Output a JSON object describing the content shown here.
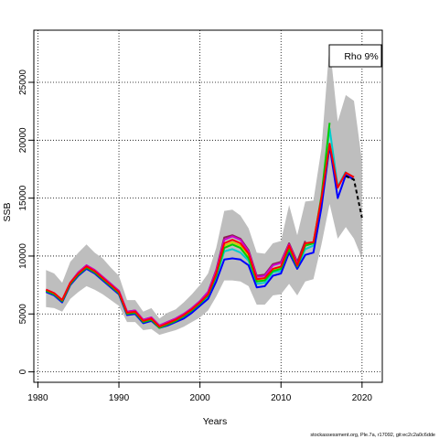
{
  "chart_data": {
    "type": "line",
    "xlabel": "Years",
    "ylabel": "SSB",
    "xlim": [
      1979.5,
      2022.5
    ],
    "ylim": [
      -900,
      29500
    ],
    "xticks": [
      1980,
      1990,
      2000,
      2010,
      2020
    ],
    "yticks": [
      0,
      5000,
      10000,
      15000,
      20000,
      25000
    ],
    "xtick_labels": [
      "1980",
      "1990",
      "2000",
      "2010",
      "2020"
    ],
    "ytick_labels": [
      "0",
      "5000",
      "10000",
      "15000",
      "20000",
      "25000"
    ],
    "grid": true,
    "legend": {
      "position": "top-right",
      "text": "Rho 9%"
    },
    "footer": "stockassessment.org, Ple.7a, r17092, git:ec2c2a0c6dde",
    "confidence_band": {
      "color": "#bebebe",
      "x": [
        1981,
        1982,
        1983,
        1984,
        1985,
        1986,
        1987,
        1988,
        1989,
        1990,
        1991,
        1992,
        1993,
        1994,
        1995,
        1996,
        1997,
        1998,
        1999,
        2000,
        2001,
        2002,
        2003,
        2004,
        2005,
        2006,
        2007,
        2008,
        2009,
        2010,
        2011,
        2012,
        2013,
        2014,
        2015,
        2016,
        2017,
        2018,
        2019,
        2020
      ],
      "lower": [
        5600,
        5500,
        5200,
        6300,
        6900,
        7400,
        7100,
        6700,
        6200,
        5700,
        4300,
        4300,
        3600,
        3700,
        3200,
        3400,
        3600,
        3900,
        4300,
        4700,
        5300,
        6500,
        7900,
        7900,
        7800,
        7400,
        5800,
        5800,
        6600,
        6700,
        7600,
        6600,
        7800,
        8000,
        11000,
        14500,
        11500,
        12500,
        11500,
        9800
      ],
      "upper": [
        8800,
        8500,
        7700,
        9500,
        10300,
        11000,
        10300,
        9800,
        9000,
        8300,
        6200,
        6200,
        5200,
        5500,
        4600,
        5100,
        5400,
        6000,
        6700,
        7500,
        8500,
        10700,
        13900,
        14000,
        13500,
        12400,
        10300,
        10200,
        11100,
        11300,
        14400,
        11800,
        14700,
        14800,
        19300,
        28300,
        21600,
        23900,
        23400,
        18200
      ]
    },
    "series": [
      {
        "color": "#000000",
        "dashed": true,
        "x": [
          2018,
          2019,
          2020
        ],
        "values": [
          16900,
          16600,
          13300
        ]
      },
      {
        "color": "#ff0000",
        "x": [
          1981,
          1982,
          1983,
          1984,
          1985,
          1986,
          1987,
          1988,
          1989,
          1990,
          1991,
          1992,
          1993,
          1994,
          1995,
          1996,
          1997,
          1998,
          1999,
          2000,
          2001,
          2002,
          2003,
          2004,
          2005,
          2006,
          2007,
          2008,
          2009,
          2010,
          2011,
          2012,
          2013,
          2014,
          2015,
          2016,
          2017,
          2018,
          2019
        ],
        "values": [
          7100,
          6800,
          6200,
          7700,
          8500,
          9100,
          8700,
          8100,
          7500,
          6900,
          5100,
          5200,
          4400,
          4600,
          3900,
          4200,
          4500,
          4900,
          5400,
          6000,
          6700,
          8500,
          11100,
          11400,
          11100,
          10200,
          8000,
          8100,
          8900,
          9100,
          10900,
          9200,
          11100,
          11200,
          15000,
          19700,
          15900,
          17200,
          16800
        ]
      },
      {
        "color": "#00cd00",
        "x": [
          1981,
          1982,
          1983,
          1984,
          1985,
          1986,
          1987,
          1988,
          1989,
          1990,
          1991,
          1992,
          1993,
          1994,
          1995,
          1996,
          1997,
          1998,
          1999,
          2000,
          2001,
          2002,
          2003,
          2004,
          2005,
          2006,
          2007,
          2008,
          2009,
          2010,
          2011,
          2012,
          2013,
          2014,
          2015,
          2016
        ],
        "values": [
          7000,
          6700,
          6100,
          7600,
          8400,
          9000,
          8600,
          8000,
          7400,
          6800,
          5000,
          5100,
          4300,
          4500,
          3800,
          4100,
          4400,
          4800,
          5300,
          5900,
          6600,
          8300,
          10700,
          11000,
          10700,
          9800,
          7800,
          7900,
          8700,
          8900,
          10600,
          9100,
          10900,
          11100,
          15200,
          21500
        ]
      },
      {
        "color": "#0000ff",
        "x": [
          1981,
          1982,
          1983,
          1984,
          1985,
          1986,
          1987,
          1988,
          1989,
          1990,
          1991,
          1992,
          1993,
          1994,
          1995,
          1996,
          1997,
          1998,
          1999,
          2000,
          2001,
          2002,
          2003,
          2004,
          2005,
          2006,
          2007,
          2008,
          2009,
          2010,
          2011,
          2012,
          2013,
          2014,
          2015,
          2016,
          2017,
          2018,
          2019
        ],
        "values": [
          6900,
          6600,
          6000,
          7500,
          8300,
          8900,
          8500,
          7900,
          7300,
          6700,
          4900,
          5000,
          4200,
          4400,
          3800,
          4000,
          4300,
          4600,
          5100,
          5700,
          6300,
          7800,
          9700,
          9800,
          9700,
          9200,
          7300,
          7400,
          8300,
          8500,
          10300,
          8900,
          10100,
          10300,
          14200,
          19500,
          15000,
          17000,
          16600
        ]
      },
      {
        "color": "#00cdcd",
        "x": [
          1981,
          1982,
          1983,
          1984,
          1985,
          1986,
          1987,
          1988,
          1989,
          1990,
          1991,
          1992,
          1993,
          1994,
          1995,
          1996,
          1997,
          1998,
          1999,
          2000,
          2001,
          2002,
          2003,
          2004,
          2005,
          2006,
          2007,
          2008,
          2009,
          2010,
          2011,
          2012,
          2013,
          2014,
          2015,
          2016,
          2017,
          2018
        ],
        "values": [
          7000,
          6700,
          6100,
          7600,
          8400,
          9000,
          8600,
          8000,
          7400,
          6800,
          5000,
          5100,
          4300,
          4500,
          3800,
          4100,
          4400,
          4800,
          5200,
          5800,
          6500,
          8200,
          10400,
          10600,
          10300,
          9600,
          7600,
          7700,
          8600,
          8700,
          10500,
          9000,
          10600,
          10900,
          15000,
          21000,
          16000,
          17300
        ]
      },
      {
        "color": "#cd00cd",
        "x": [
          1981,
          1982,
          1983,
          1984,
          1985,
          1986,
          1987,
          1988,
          1989,
          1990,
          1991,
          1992,
          1993,
          1994,
          1995,
          1996,
          1997,
          1998,
          1999,
          2000,
          2001,
          2002,
          2003,
          2004,
          2005,
          2006,
          2007,
          2008,
          2009,
          2010,
          2011,
          2012
        ],
        "values": [
          7100,
          6800,
          6200,
          7700,
          8600,
          9200,
          8800,
          8200,
          7600,
          7000,
          5200,
          5300,
          4500,
          4700,
          4000,
          4300,
          4600,
          5000,
          5500,
          6100,
          6900,
          8700,
          11400,
          11700,
          11400,
          10400,
          8200,
          8300,
          9200,
          9400,
          11000,
          9400
        ]
      },
      {
        "color": "#cdcd00",
        "x": [
          1981,
          1982,
          1983,
          1984,
          1985,
          1986,
          1987,
          1988,
          1989,
          1990,
          1991,
          1992,
          1993,
          1994,
          1995,
          1996,
          1997,
          1998,
          1999,
          2000,
          2001,
          2002,
          2003,
          2004,
          2005,
          2006,
          2007,
          2008,
          2009,
          2010,
          2011,
          2012,
          2013,
          2014,
          2015
        ],
        "values": [
          7000,
          6700,
          6100,
          7600,
          8500,
          9100,
          8700,
          8100,
          7500,
          6900,
          5100,
          5200,
          4400,
          4500,
          3900,
          4100,
          4500,
          4800,
          5300,
          5900,
          6600,
          8400,
          10900,
          11200,
          10900,
          10000,
          7900,
          8000,
          8800,
          9000,
          10700,
          9200,
          11000,
          11200,
          14800
        ]
      },
      {
        "color": "#8b2252",
        "x": [
          1981,
          1982,
          1983,
          1984,
          1985,
          1986,
          1987,
          1988,
          1989,
          1990,
          1991,
          1992,
          1993,
          1994,
          1995,
          1996,
          1997,
          1998,
          1999,
          2000,
          2001,
          2002,
          2003,
          2004,
          2005,
          2006,
          2007,
          2008,
          2009,
          2010,
          2011,
          2012,
          2013
        ],
        "values": [
          7100,
          6800,
          6200,
          7700,
          8600,
          9200,
          8800,
          8200,
          7600,
          7000,
          5200,
          5300,
          4500,
          4700,
          4000,
          4300,
          4600,
          5000,
          5500,
          6100,
          6900,
          8800,
          11600,
          11800,
          11500,
          10500,
          8300,
          8400,
          9300,
          9500,
          11100,
          9500,
          11300
        ]
      }
    ]
  }
}
